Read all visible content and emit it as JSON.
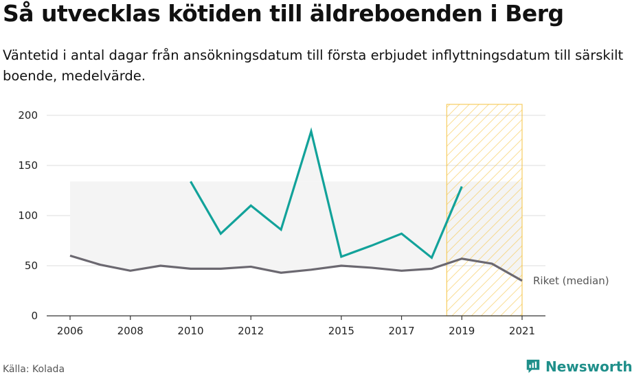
{
  "title": "Så utvecklas kötiden till äldreboenden i Berg",
  "subtitle": "Väntetid i antal dagar från ansökningsdatum till första erbjudet inflyttningsdatum till särskilt boende, medelvärde.",
  "source": "Källa: Kolada",
  "logo": {
    "text": "Newsworthy",
    "icon": "newsworthy-logo-icon"
  },
  "colors": {
    "berg": "#12a29a",
    "riket": "#6b6870",
    "band": "#f4f4f4",
    "highlight": "#f5c13b",
    "grid": "#dddddd",
    "axis": "#333333"
  },
  "chart_data": {
    "type": "line",
    "x_ticks": [
      2006,
      2008,
      2010,
      2012,
      2015,
      2017,
      2019,
      2021
    ],
    "y_ticks": [
      0,
      50,
      100,
      150,
      200
    ],
    "xlim": [
      2006,
      2021
    ],
    "ylim": [
      0,
      200
    ],
    "grid": true,
    "highlight_range": [
      2018.5,
      2021
    ],
    "series": [
      {
        "name": "Berg",
        "x": [
          2010,
          2011,
          2012,
          2013,
          2014,
          2015,
          2016,
          2017,
          2018,
          2019
        ],
        "values": [
          134,
          82,
          110,
          86,
          184,
          59,
          70,
          82,
          58,
          129
        ]
      },
      {
        "name": "Riket (median)",
        "x": [
          2006,
          2007,
          2008,
          2009,
          2010,
          2011,
          2012,
          2013,
          2014,
          2015,
          2016,
          2017,
          2018,
          2019,
          2020,
          2021
        ],
        "values": [
          60,
          51,
          45,
          50,
          47,
          47,
          49,
          43,
          46,
          50,
          48,
          45,
          47,
          57,
          52,
          35
        ]
      }
    ],
    "range_band": {
      "x": [
        2006,
        2021
      ],
      "upper": 134
    }
  }
}
